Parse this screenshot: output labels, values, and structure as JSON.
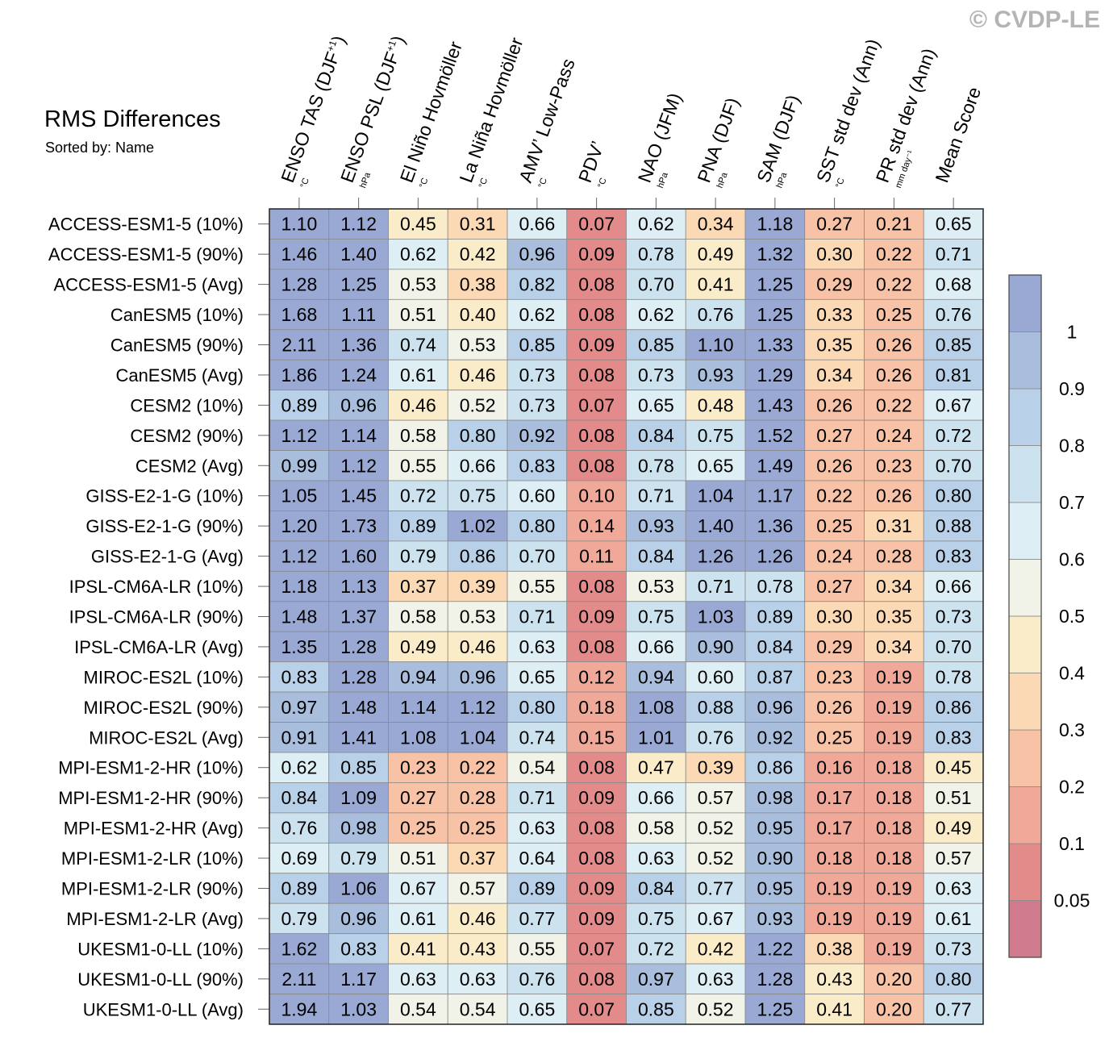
{
  "copyright": "© CVDP-LE",
  "chart_data": {
    "type": "heatmap",
    "title": "RMS Differences",
    "subtitle": "Sorted by: Name",
    "columns": [
      {
        "label": "ENSO TAS (DJF",
        "sup": "+1",
        "close": ")",
        "unit": "°C"
      },
      {
        "label": "ENSO PSL (DJF",
        "sup": "+1",
        "close": ")",
        "unit": "hPa"
      },
      {
        "label": "El Niño Hovmöller",
        "sup": "",
        "close": "",
        "unit": "°C"
      },
      {
        "label": "La Niña Hovmöller",
        "sup": "",
        "close": "",
        "unit": "°C"
      },
      {
        "label": "AMV’ Low-Pass",
        "sup": "",
        "close": "",
        "unit": "°C"
      },
      {
        "label": "PDV’",
        "sup": "",
        "close": "",
        "unit": "°C"
      },
      {
        "label": "NAO (JFM)",
        "sup": "",
        "close": "",
        "unit": "hPa"
      },
      {
        "label": "PNA (DJF)",
        "sup": "",
        "close": "",
        "unit": "hPa"
      },
      {
        "label": "SAM (DJF)",
        "sup": "",
        "close": "",
        "unit": "hPa"
      },
      {
        "label": "SST std dev (Ann)",
        "sup": "",
        "close": "",
        "unit": "°C"
      },
      {
        "label": "PR std dev (Ann)",
        "sup": "",
        "close": "",
        "unit": "mm day⁻¹"
      },
      {
        "label": "Mean Score",
        "sup": "",
        "close": "",
        "unit": ""
      }
    ],
    "rows": [
      "ACCESS-ESM1-5 (10%)",
      "ACCESS-ESM1-5 (90%)",
      "ACCESS-ESM1-5 (Avg)",
      "CanESM5 (10%)",
      "CanESM5 (90%)",
      "CanESM5 (Avg)",
      "CESM2 (10%)",
      "CESM2 (90%)",
      "CESM2 (Avg)",
      "GISS-E2-1-G (10%)",
      "GISS-E2-1-G (90%)",
      "GISS-E2-1-G (Avg)",
      "IPSL-CM6A-LR (10%)",
      "IPSL-CM6A-LR (90%)",
      "IPSL-CM6A-LR (Avg)",
      "MIROC-ES2L (10%)",
      "MIROC-ES2L (90%)",
      "MIROC-ES2L (Avg)",
      "MPI-ESM1-2-HR (10%)",
      "MPI-ESM1-2-HR (90%)",
      "MPI-ESM1-2-HR (Avg)",
      "MPI-ESM1-2-LR (10%)",
      "MPI-ESM1-2-LR (90%)",
      "MPI-ESM1-2-LR (Avg)",
      "UKESM1-0-LL (10%)",
      "UKESM1-0-LL (90%)",
      "UKESM1-0-LL (Avg)"
    ],
    "values": [
      [
        "1.10",
        "1.12",
        "0.45",
        "0.31",
        "0.66",
        "0.07",
        "0.62",
        "0.34",
        "1.18",
        "0.27",
        "0.21",
        "0.65"
      ],
      [
        "1.46",
        "1.40",
        "0.62",
        "0.42",
        "0.96",
        "0.09",
        "0.78",
        "0.49",
        "1.32",
        "0.30",
        "0.22",
        "0.71"
      ],
      [
        "1.28",
        "1.25",
        "0.53",
        "0.38",
        "0.82",
        "0.08",
        "0.70",
        "0.41",
        "1.25",
        "0.29",
        "0.22",
        "0.68"
      ],
      [
        "1.68",
        "1.11",
        "0.51",
        "0.40",
        "0.62",
        "0.08",
        "0.62",
        "0.76",
        "1.25",
        "0.33",
        "0.25",
        "0.76"
      ],
      [
        "2.11",
        "1.36",
        "0.74",
        "0.53",
        "0.85",
        "0.09",
        "0.85",
        "1.10",
        "1.33",
        "0.35",
        "0.26",
        "0.85"
      ],
      [
        "1.86",
        "1.24",
        "0.61",
        "0.46",
        "0.73",
        "0.08",
        "0.73",
        "0.93",
        "1.29",
        "0.34",
        "0.26",
        "0.81"
      ],
      [
        "0.89",
        "0.96",
        "0.46",
        "0.52",
        "0.73",
        "0.07",
        "0.65",
        "0.48",
        "1.43",
        "0.26",
        "0.22",
        "0.67"
      ],
      [
        "1.12",
        "1.14",
        "0.58",
        "0.80",
        "0.92",
        "0.08",
        "0.84",
        "0.75",
        "1.52",
        "0.27",
        "0.24",
        "0.72"
      ],
      [
        "0.99",
        "1.12",
        "0.55",
        "0.66",
        "0.83",
        "0.08",
        "0.78",
        "0.65",
        "1.49",
        "0.26",
        "0.23",
        "0.70"
      ],
      [
        "1.05",
        "1.45",
        "0.72",
        "0.75",
        "0.60",
        "0.10",
        "0.71",
        "1.04",
        "1.17",
        "0.22",
        "0.26",
        "0.80"
      ],
      [
        "1.20",
        "1.73",
        "0.89",
        "1.02",
        "0.80",
        "0.14",
        "0.93",
        "1.40",
        "1.36",
        "0.25",
        "0.31",
        "0.88"
      ],
      [
        "1.12",
        "1.60",
        "0.79",
        "0.86",
        "0.70",
        "0.11",
        "0.84",
        "1.26",
        "1.26",
        "0.24",
        "0.28",
        "0.83"
      ],
      [
        "1.18",
        "1.13",
        "0.37",
        "0.39",
        "0.55",
        "0.08",
        "0.53",
        "0.71",
        "0.78",
        "0.27",
        "0.34",
        "0.66"
      ],
      [
        "1.48",
        "1.37",
        "0.58",
        "0.53",
        "0.71",
        "0.09",
        "0.75",
        "1.03",
        "0.89",
        "0.30",
        "0.35",
        "0.73"
      ],
      [
        "1.35",
        "1.28",
        "0.49",
        "0.46",
        "0.63",
        "0.08",
        "0.66",
        "0.90",
        "0.84",
        "0.29",
        "0.34",
        "0.70"
      ],
      [
        "0.83",
        "1.28",
        "0.94",
        "0.96",
        "0.65",
        "0.12",
        "0.94",
        "0.60",
        "0.87",
        "0.23",
        "0.19",
        "0.78"
      ],
      [
        "0.97",
        "1.48",
        "1.14",
        "1.12",
        "0.80",
        "0.18",
        "1.08",
        "0.88",
        "0.96",
        "0.26",
        "0.19",
        "0.86"
      ],
      [
        "0.91",
        "1.41",
        "1.08",
        "1.04",
        "0.74",
        "0.15",
        "1.01",
        "0.76",
        "0.92",
        "0.25",
        "0.19",
        "0.83"
      ],
      [
        "0.62",
        "0.85",
        "0.23",
        "0.22",
        "0.54",
        "0.08",
        "0.47",
        "0.39",
        "0.86",
        "0.16",
        "0.18",
        "0.45"
      ],
      [
        "0.84",
        "1.09",
        "0.27",
        "0.28",
        "0.71",
        "0.09",
        "0.66",
        "0.57",
        "0.98",
        "0.17",
        "0.18",
        "0.51"
      ],
      [
        "0.76",
        "0.98",
        "0.25",
        "0.25",
        "0.63",
        "0.08",
        "0.58",
        "0.52",
        "0.95",
        "0.17",
        "0.18",
        "0.49"
      ],
      [
        "0.69",
        "0.79",
        "0.51",
        "0.37",
        "0.64",
        "0.08",
        "0.63",
        "0.52",
        "0.90",
        "0.18",
        "0.18",
        "0.57"
      ],
      [
        "0.89",
        "1.06",
        "0.67",
        "0.57",
        "0.89",
        "0.09",
        "0.84",
        "0.77",
        "0.95",
        "0.19",
        "0.19",
        "0.63"
      ],
      [
        "0.79",
        "0.96",
        "0.61",
        "0.46",
        "0.77",
        "0.09",
        "0.75",
        "0.67",
        "0.93",
        "0.19",
        "0.19",
        "0.61"
      ],
      [
        "1.62",
        "0.83",
        "0.41",
        "0.43",
        "0.55",
        "0.07",
        "0.72",
        "0.42",
        "1.22",
        "0.38",
        "0.19",
        "0.73"
      ],
      [
        "2.11",
        "1.17",
        "0.63",
        "0.63",
        "0.76",
        "0.08",
        "0.97",
        "0.63",
        "1.28",
        "0.43",
        "0.20",
        "0.80"
      ],
      [
        "1.94",
        "1.03",
        "0.54",
        "0.54",
        "0.65",
        "0.07",
        "0.85",
        "0.52",
        "1.25",
        "0.41",
        "0.20",
        "0.77"
      ]
    ],
    "colorbar": {
      "levels": [
        0.05,
        0.1,
        0.2,
        0.3,
        0.4,
        0.5,
        0.6,
        0.7,
        0.8,
        0.9,
        1
      ],
      "labels": [
        "0.05",
        "0.1",
        "0.2",
        "0.3",
        "0.4",
        "0.5",
        "0.6",
        "0.7",
        "0.8",
        "0.9",
        "1"
      ],
      "colors": [
        "#d07b8d",
        "#e38a8a",
        "#f0a899",
        "#f7c2a6",
        "#fbd9b4",
        "#fbecc9",
        "#f1f2e8",
        "#deeef5",
        "#cce3ef",
        "#b8d1e8",
        "#a8bedc",
        "#99a9d4"
      ]
    }
  }
}
